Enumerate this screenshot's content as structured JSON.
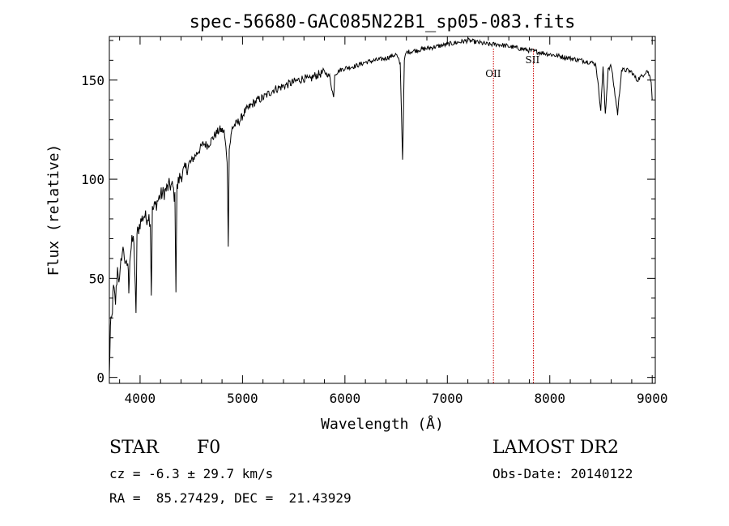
{
  "chart_data": {
    "type": "line",
    "title": "spec-56680-GAC085N22B1_sp05-083.fits",
    "xlabel": "Wavelength (Å)",
    "ylabel": "Flux (relative)",
    "xlim": [
      3700,
      9030
    ],
    "ylim": [
      -3,
      172
    ],
    "xticks": [
      4000,
      5000,
      6000,
      7000,
      8000,
      9000
    ],
    "yticks": [
      0,
      50,
      100,
      150
    ],
    "grid": false,
    "series": [
      {
        "color": "#000000",
        "x": [
          3700,
          3710,
          3725,
          3740,
          3760,
          3780,
          3800,
          3820,
          3840,
          3860,
          3880,
          3890,
          3900,
          3920,
          3940,
          3960,
          3970,
          3980,
          4000,
          4020,
          4040,
          4060,
          4080,
          4100,
          4110,
          4120,
          4140,
          4160,
          4180,
          4200,
          4230,
          4260,
          4290,
          4320,
          4340,
          4350,
          4360,
          4380,
          4400,
          4430,
          4460,
          4500,
          4540,
          4580,
          4620,
          4660,
          4700,
          4740,
          4780,
          4820,
          4850,
          4861,
          4870,
          4900,
          4940,
          4980,
          5020,
          5060,
          5100,
          5150,
          5200,
          5250,
          5300,
          5350,
          5400,
          5450,
          5500,
          5550,
          5600,
          5650,
          5700,
          5750,
          5800,
          5850,
          5890,
          5900,
          5950,
          6000,
          6100,
          6200,
          6300,
          6400,
          6500,
          6540,
          6563,
          6580,
          6600,
          6700,
          6800,
          6900,
          7000,
          7100,
          7200,
          7300,
          7400,
          7500,
          7600,
          7700,
          7800,
          7900,
          8000,
          8100,
          8200,
          8300,
          8400,
          8450,
          8498,
          8520,
          8542,
          8570,
          8600,
          8662,
          8700,
          8750,
          8800,
          8850,
          8900,
          8950,
          8990,
          9000
        ],
        "values": [
          0,
          25,
          30,
          45,
          38,
          55,
          48,
          62,
          65,
          55,
          58,
          45,
          60,
          68,
          70,
          30,
          72,
          74,
          78,
          80,
          82,
          80,
          82,
          79,
          42,
          84,
          86,
          88,
          90,
          92,
          93,
          95,
          97,
          96,
          90,
          45,
          95,
          100,
          102,
          104,
          106,
          109,
          112,
          115,
          118,
          117,
          120,
          123,
          125,
          124,
          110,
          68,
          115,
          126,
          128,
          130,
          134,
          136,
          138,
          140,
          141,
          143,
          145,
          146,
          147,
          148,
          149,
          150,
          151,
          150,
          152,
          153,
          154,
          152,
          141,
          153,
          155,
          156,
          157,
          159,
          160,
          161,
          163,
          158,
          110,
          160,
          164,
          165,
          166,
          167,
          168,
          169,
          170,
          169,
          168,
          168,
          167,
          166,
          165,
          164,
          163,
          162,
          161,
          160,
          159,
          158,
          135,
          157,
          132,
          156,
          157,
          133,
          155,
          155,
          154,
          150,
          152,
          155,
          150,
          140
        ]
      }
    ],
    "annotations": [
      {
        "label": "OII",
        "x": 7450
      },
      {
        "label": "SII",
        "x": 7840
      }
    ]
  },
  "info": {
    "object_type": "STAR",
    "subclass": "F0",
    "redshift": "cz = -6.3 ± 29.7 km/s",
    "coords": "RA =  85.27429, DEC =  21.43929",
    "survey": "LAMOST DR2",
    "obs_date": "Obs-Date: 20140122"
  }
}
